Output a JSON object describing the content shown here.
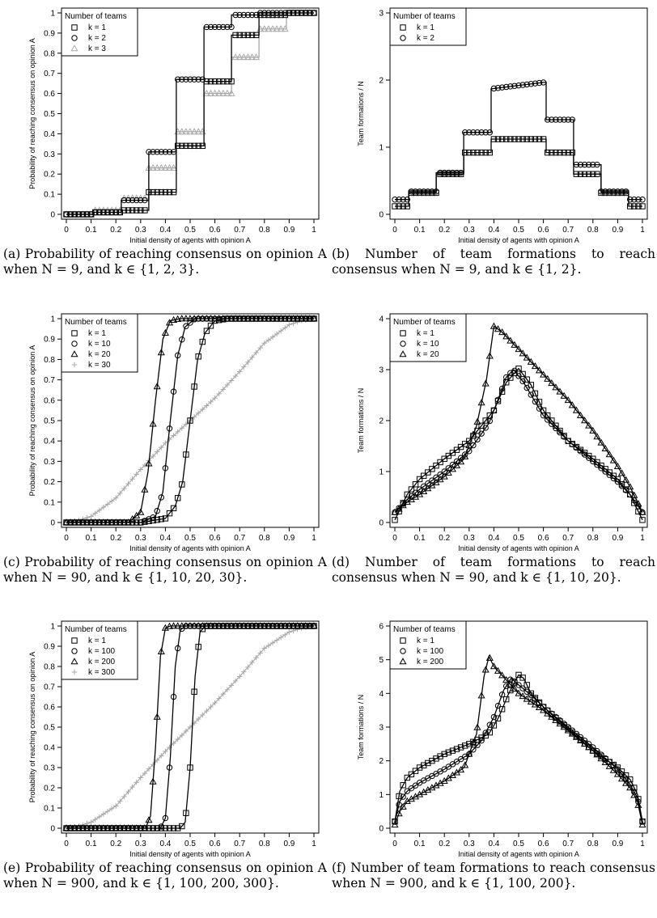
{
  "panels": [
    {
      "id": "a",
      "caption": "(a) Probability of reaching consensus on opinion A when N = 9, and k ∈ {1, 2, 3}.",
      "chart_data": {
        "type": "line",
        "ylabel": "Probability of reaching consensus on opinion A",
        "xlabel": "Initial density of agents with opinion A",
        "xlim": [
          0,
          1
        ],
        "ylim": [
          0,
          1
        ],
        "xticks": [
          0,
          0.1,
          0.2,
          0.3,
          0.4,
          0.5,
          0.6,
          0.7,
          0.8,
          0.9,
          1
        ],
        "yticks": [
          0,
          0.1,
          0.2,
          0.3,
          0.4,
          0.5,
          0.6,
          0.7,
          0.8,
          0.9,
          1
        ],
        "legend_title": "Number of teams",
        "legend_position": "top-left",
        "series": [
          {
            "name": "k = 1",
            "marker": "square",
            "color": "#000000",
            "x": [
              0,
              0.111,
              0.111,
              0.222,
              0.222,
              0.333,
              0.333,
              0.444,
              0.444,
              0.556,
              0.556,
              0.667,
              0.667,
              0.778,
              0.778,
              0.889,
              0.889,
              1
            ],
            "y": [
              0,
              0,
              0.01,
              0.01,
              0.02,
              0.02,
              0.11,
              0.11,
              0.34,
              0.34,
              0.66,
              0.66,
              0.89,
              0.89,
              0.99,
              0.99,
              1,
              1
            ]
          },
          {
            "name": "k = 2",
            "marker": "circle",
            "color": "#000000",
            "x": [
              0,
              0.111,
              0.111,
              0.222,
              0.222,
              0.333,
              0.333,
              0.444,
              0.444,
              0.556,
              0.556,
              0.667,
              0.667,
              0.778,
              0.778,
              0.889,
              0.889,
              1
            ],
            "y": [
              0,
              0,
              0.01,
              0.01,
              0.07,
              0.07,
              0.31,
              0.31,
              0.67,
              0.67,
              0.93,
              0.93,
              0.99,
              0.99,
              1,
              1,
              1,
              1
            ]
          },
          {
            "name": "k = 3",
            "marker": "triangle",
            "color": "#aaaaaa",
            "x": [
              0,
              0.111,
              0.111,
              0.222,
              0.222,
              0.333,
              0.333,
              0.444,
              0.444,
              0.556,
              0.556,
              0.667,
              0.667,
              0.778,
              0.778,
              0.889,
              0.889,
              1
            ],
            "y": [
              0,
              0,
              0.02,
              0.02,
              0.08,
              0.08,
              0.23,
              0.23,
              0.41,
              0.41,
              0.6,
              0.6,
              0.78,
              0.78,
              0.92,
              0.92,
              1,
              1
            ]
          }
        ]
      }
    },
    {
      "id": "b",
      "caption": "(b) Number of team formations to reach consensus when N = 9, and k ∈ {1, 2}.",
      "chart_data": {
        "type": "line",
        "ylabel": "Team formations / N",
        "xlabel": "Initial density of agents with opinion A",
        "xlim": [
          0,
          1
        ],
        "ylim": [
          0,
          3
        ],
        "xticks": [
          0,
          0.1,
          0.2,
          0.3,
          0.4,
          0.5,
          0.6,
          0.7,
          0.8,
          0.9,
          1
        ],
        "yticks": [
          0,
          1,
          2,
          3
        ],
        "legend_title": "Number of teams",
        "legend_position": "top-left",
        "series": [
          {
            "name": "k = 1",
            "marker": "square",
            "color": "#000000",
            "x": [
              0,
              0.056,
              0.056,
              0.167,
              0.167,
              0.278,
              0.278,
              0.389,
              0.389,
              0.611,
              0.611,
              0.722,
              0.722,
              0.833,
              0.833,
              0.944,
              0.944,
              1
            ],
            "y": [
              0.12,
              0.12,
              0.32,
              0.32,
              0.6,
              0.6,
              0.92,
              0.92,
              1.12,
              1.12,
              0.92,
              0.92,
              0.6,
              0.6,
              0.32,
              0.32,
              0.12,
              0.12
            ]
          },
          {
            "name": "k = 2",
            "marker": "circle",
            "color": "#000000",
            "x": [
              0,
              0.056,
              0.056,
              0.167,
              0.167,
              0.278,
              0.278,
              0.389,
              0.389,
              0.611,
              0.611,
              0.722,
              0.722,
              0.833,
              0.833,
              0.944,
              0.944,
              1
            ],
            "y": [
              0.22,
              0.22,
              0.34,
              0.34,
              0.62,
              0.62,
              1.22,
              1.22,
              1.87,
              1.97,
              1.41,
              1.41,
              0.74,
              0.74,
              0.34,
              0.34,
              0.22,
              0.22
            ]
          }
        ]
      }
    },
    {
      "id": "c",
      "caption": "(c) Probability of reaching consensus on opinion A when N = 90, and k ∈ {1, 10, 20, 30}.",
      "chart_data": {
        "type": "line",
        "ylabel": "Probability of reaching consensus on opinion A",
        "xlabel": "Initial density of agents with opinion A",
        "xlim": [
          0,
          1
        ],
        "ylim": [
          0,
          1
        ],
        "xticks": [
          0,
          0.1,
          0.2,
          0.3,
          0.4,
          0.5,
          0.6,
          0.7,
          0.8,
          0.9,
          1
        ],
        "yticks": [
          0,
          0.1,
          0.2,
          0.3,
          0.4,
          0.5,
          0.6,
          0.7,
          0.8,
          0.9,
          1
        ],
        "legend_title": "Number of teams",
        "legend_position": "top-left",
        "series": [
          {
            "name": "k = 1",
            "marker": "square",
            "color": "#000000",
            "x": [
              0,
              0.3,
              0.4,
              0.44,
              0.47,
              0.5,
              0.53,
              0.56,
              0.6,
              0.65,
              1
            ],
            "y": [
              0,
              0,
              0.02,
              0.08,
              0.2,
              0.5,
              0.8,
              0.93,
              0.99,
              1,
              1
            ]
          },
          {
            "name": "k = 10",
            "marker": "circle",
            "color": "#000000",
            "x": [
              0,
              0.3,
              0.36,
              0.39,
              0.42,
              0.45,
              0.48,
              0.52,
              0.56,
              1
            ],
            "y": [
              0,
              0,
              0.03,
              0.15,
              0.5,
              0.82,
              0.96,
              1,
              1,
              1
            ]
          },
          {
            "name": "k = 20",
            "marker": "triangle",
            "color": "#000000",
            "x": [
              0,
              0.25,
              0.3,
              0.33,
              0.36,
              0.39,
              0.42,
              0.46,
              0.5,
              1
            ],
            "y": [
              0,
              0,
              0.05,
              0.25,
              0.6,
              0.9,
              0.99,
              1,
              1,
              1
            ]
          },
          {
            "name": "k = 30",
            "marker": "plus",
            "color": "#aaaaaa",
            "x": [
              0,
              0.05,
              0.1,
              0.2,
              0.3,
              0.4,
              0.5,
              0.6,
              0.7,
              0.8,
              0.9,
              0.95,
              1
            ],
            "y": [
              0,
              0.01,
              0.03,
              0.12,
              0.26,
              0.39,
              0.5,
              0.61,
              0.74,
              0.88,
              0.97,
              0.99,
              1
            ]
          }
        ]
      }
    },
    {
      "id": "d",
      "caption": "(d) Number of team formations to reach consensus when N = 90, and k ∈ {1, 10, 20}.",
      "chart_data": {
        "type": "line",
        "ylabel": "Team formations / N",
        "xlabel": "Initial density of agents with opinion A",
        "xlim": [
          0,
          1
        ],
        "ylim": [
          0,
          4
        ],
        "xticks": [
          0,
          0.1,
          0.2,
          0.3,
          0.4,
          0.5,
          0.6,
          0.7,
          0.8,
          0.9,
          1
        ],
        "yticks": [
          0,
          1,
          2,
          3,
          4
        ],
        "legend_title": "Number of teams",
        "legend_position": "top-left",
        "series": [
          {
            "name": "k = 1",
            "marker": "square",
            "color": "#000000",
            "x": [
              0,
              0.05,
              0.1,
              0.2,
              0.3,
              0.4,
              0.45,
              0.5,
              0.55,
              0.6,
              0.7,
              0.8,
              0.9,
              0.95,
              1
            ],
            "y": [
              0.05,
              0.55,
              0.85,
              1.25,
              1.6,
              2.2,
              2.75,
              3.02,
              2.7,
              2.2,
              1.6,
              1.25,
              0.85,
              0.55,
              0.05
            ]
          },
          {
            "name": "k = 10",
            "marker": "circle",
            "color": "#000000",
            "x": [
              0,
              0.05,
              0.1,
              0.2,
              0.3,
              0.38,
              0.42,
              0.45,
              0.48,
              0.52,
              0.6,
              0.7,
              0.8,
              0.9,
              0.95,
              1
            ],
            "y": [
              0.2,
              0.45,
              0.65,
              1.0,
              1.4,
              1.95,
              2.45,
              2.85,
              3.0,
              2.75,
              2.1,
              1.6,
              1.2,
              0.8,
              0.55,
              0.2
            ]
          },
          {
            "name": "k = 20",
            "marker": "triangle",
            "color": "#000000",
            "x": [
              0,
              0.05,
              0.1,
              0.2,
              0.28,
              0.33,
              0.37,
              0.4,
              0.43,
              0.5,
              0.6,
              0.7,
              0.8,
              0.9,
              0.95,
              1
            ],
            "y": [
              0.2,
              0.4,
              0.55,
              0.9,
              1.25,
              1.9,
              2.8,
              3.85,
              3.75,
              3.4,
              2.9,
              2.4,
              1.8,
              1.1,
              0.7,
              0.2
            ]
          }
        ]
      }
    },
    {
      "id": "e",
      "caption": "(e) Probability of reaching consensus on opinion A when N = 900, and k ∈ {1, 100, 200, 300}.",
      "chart_data": {
        "type": "line",
        "ylabel": "Probability of reaching consensus on opinion A",
        "xlabel": "Initial density of agents with opinion A",
        "xlim": [
          0,
          1
        ],
        "ylim": [
          0,
          1
        ],
        "xticks": [
          0,
          0.1,
          0.2,
          0.3,
          0.4,
          0.5,
          0.6,
          0.7,
          0.8,
          0.9,
          1
        ],
        "yticks": [
          0,
          0.1,
          0.2,
          0.3,
          0.4,
          0.5,
          0.6,
          0.7,
          0.8,
          0.9,
          1
        ],
        "legend_title": "Number of teams",
        "legend_position": "top-left",
        "series": [
          {
            "name": "k = 1",
            "marker": "square",
            "color": "#000000",
            "x": [
              0,
              0.46,
              0.48,
              0.5,
              0.52,
              0.54,
              0.56,
              1
            ],
            "y": [
              0,
              0,
              0.03,
              0.3,
              0.75,
              0.97,
              1,
              1
            ]
          },
          {
            "name": "k = 100",
            "marker": "circle",
            "color": "#000000",
            "x": [
              0,
              0.38,
              0.4,
              0.42,
              0.44,
              0.46,
              0.48,
              1
            ],
            "y": [
              0,
              0,
              0.05,
              0.35,
              0.8,
              0.98,
              1,
              1
            ]
          },
          {
            "name": "k = 200",
            "marker": "triangle",
            "color": "#000000",
            "x": [
              0,
              0.32,
              0.34,
              0.36,
              0.38,
              0.4,
              0.42,
              1
            ],
            "y": [
              0,
              0,
              0.06,
              0.4,
              0.85,
              0.99,
              1,
              1
            ]
          },
          {
            "name": "k = 300",
            "marker": "plus",
            "color": "#aaaaaa",
            "x": [
              0,
              0.05,
              0.1,
              0.2,
              0.3,
              0.4,
              0.5,
              0.6,
              0.7,
              0.8,
              0.9,
              0.95,
              1
            ],
            "y": [
              0,
              0.01,
              0.03,
              0.11,
              0.25,
              0.38,
              0.5,
              0.62,
              0.75,
              0.89,
              0.97,
              0.99,
              1
            ]
          }
        ]
      }
    },
    {
      "id": "f",
      "caption": "(f) Number of team formations to reach consensus when N = 900, and k ∈ {1, 100, 200}.",
      "chart_data": {
        "type": "line",
        "ylabel": "Team formations / N",
        "xlabel": "Initial density of agents with opinion A",
        "xlim": [
          0,
          1
        ],
        "ylim": [
          0,
          6
        ],
        "xticks": [
          0,
          0.1,
          0.2,
          0.3,
          0.4,
          0.5,
          0.6,
          0.7,
          0.8,
          0.9,
          1
        ],
        "yticks": [
          0,
          1,
          2,
          3,
          4,
          5,
          6
        ],
        "legend_title": "Number of teams",
        "legend_position": "top-left",
        "series": [
          {
            "name": "k = 1",
            "marker": "square",
            "color": "#000000",
            "x": [
              0,
              0.02,
              0.05,
              0.1,
              0.2,
              0.3,
              0.38,
              0.42,
              0.46,
              0.5,
              0.52,
              0.55,
              0.6,
              0.7,
              0.8,
              0.9,
              0.95,
              0.98,
              1
            ],
            "y": [
              0.2,
              1.1,
              1.5,
              1.8,
              2.2,
              2.5,
              2.8,
              3.3,
              4.0,
              4.55,
              4.45,
              4.0,
              3.6,
              2.95,
              2.3,
              1.8,
              1.45,
              1.0,
              0.2
            ]
          },
          {
            "name": "k = 100",
            "marker": "circle",
            "color": "#000000",
            "x": [
              0,
              0.02,
              0.05,
              0.1,
              0.2,
              0.3,
              0.35,
              0.4,
              0.44,
              0.47,
              0.5,
              0.55,
              0.6,
              0.7,
              0.8,
              0.9,
              0.95,
              0.98,
              1
            ],
            "y": [
              0.2,
              0.8,
              1.1,
              1.35,
              1.75,
              2.2,
              2.6,
              3.3,
              4.1,
              4.45,
              4.25,
              3.95,
              3.6,
              3.0,
              2.4,
              1.75,
              1.3,
              0.9,
              0.2
            ]
          },
          {
            "name": "k = 200",
            "marker": "triangle",
            "color": "#000000",
            "x": [
              0,
              0.02,
              0.05,
              0.1,
              0.2,
              0.28,
              0.33,
              0.36,
              0.38,
              0.4,
              0.45,
              0.5,
              0.6,
              0.7,
              0.8,
              0.9,
              0.95,
              0.98,
              1
            ],
            "y": [
              0.1,
              0.5,
              0.8,
              1.0,
              1.4,
              1.8,
              2.8,
              4.5,
              5.1,
              4.8,
              4.4,
              4.0,
              3.5,
              2.9,
              2.3,
              1.6,
              1.2,
              0.8,
              0.1
            ]
          }
        ]
      }
    }
  ]
}
